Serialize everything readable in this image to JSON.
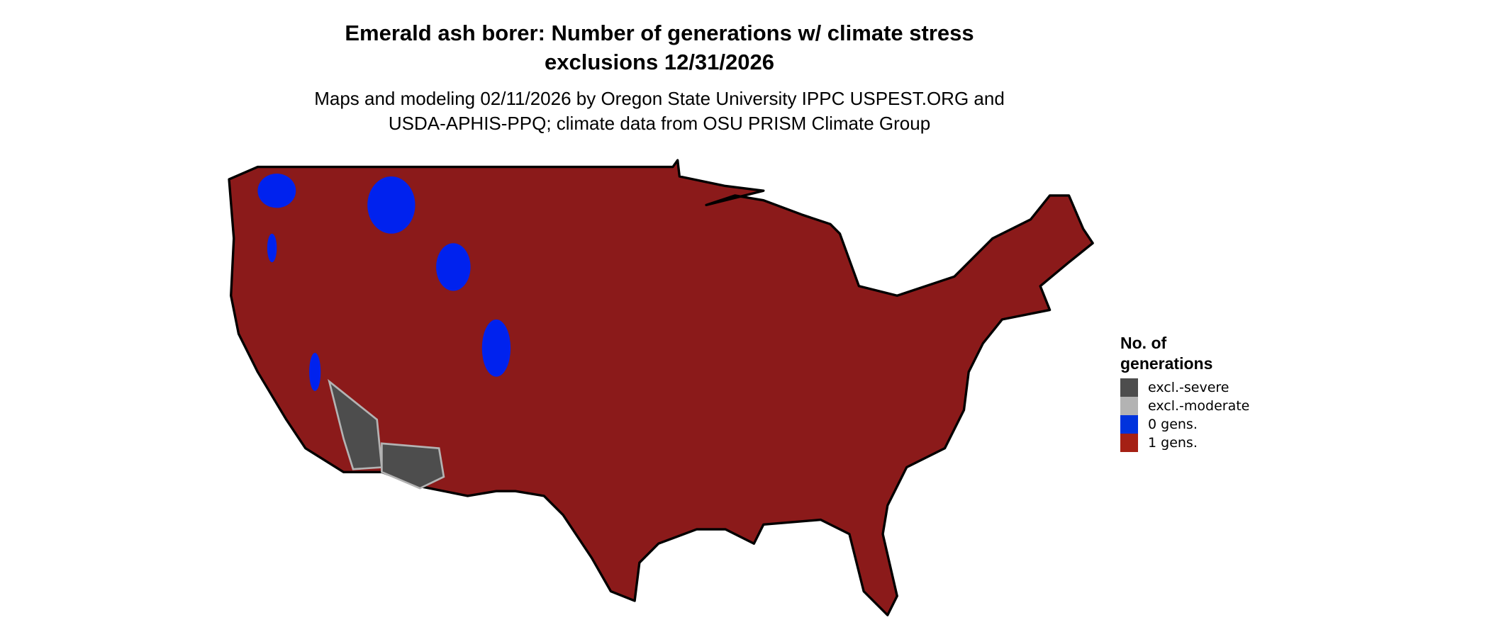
{
  "title_line1": "Emerald ash borer: Number of generations w/ climate stress",
  "title_line2": "exclusions 12/31/2026",
  "subtitle_line1": "Maps and modeling 02/11/2026 by Oregon State University IPPC USPEST.ORG and",
  "subtitle_line2": "USDA-APHIS-PPQ; climate data from OSU PRISM Climate Group",
  "legend": {
    "title_line1": "No. of",
    "title_line2": "generations",
    "items": [
      {
        "label": "excl.-severe",
        "color": "#4d4d4d"
      },
      {
        "label": "excl.-moderate",
        "color": "#b3b3b3"
      },
      {
        "label": "0 gens.",
        "color": "#0033dd"
      },
      {
        "label": "1 gens.",
        "color": "#a52014"
      }
    ]
  },
  "colors": {
    "land": "#8b1a1a",
    "border": "#000000"
  }
}
